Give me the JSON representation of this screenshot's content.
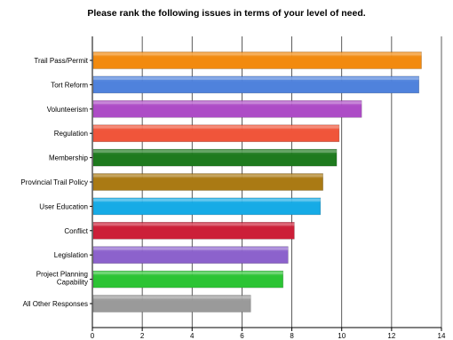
{
  "chart_data": {
    "type": "bar",
    "orientation": "horizontal",
    "title": "Please rank the following issues in terms of your level of need.",
    "categories": [
      "Trail Pass/Permit",
      "Tort Reform",
      "Volunteerism",
      "Regulation",
      "Membership",
      "Provincial Trail Policy",
      "User Education",
      "Conflict",
      "Legislation",
      "Project Planning Capability",
      "All Other Responses"
    ],
    "values": [
      13.2,
      13.1,
      10.8,
      9.9,
      9.8,
      9.25,
      9.15,
      8.1,
      7.85,
      7.65,
      6.35
    ],
    "colors": [
      "#f28a0f",
      "#4f82dc",
      "#ad4cc6",
      "#f0553a",
      "#1e7a1e",
      "#aa7a14",
      "#16abe6",
      "#cc1f38",
      "#8c62cc",
      "#2cc434",
      "#9a9a9a"
    ],
    "xlim": [
      0,
      14
    ],
    "xticks": [
      0,
      2,
      4,
      6,
      8,
      10,
      12,
      14
    ],
    "grid": true,
    "xlabel": "",
    "ylabel": ""
  }
}
